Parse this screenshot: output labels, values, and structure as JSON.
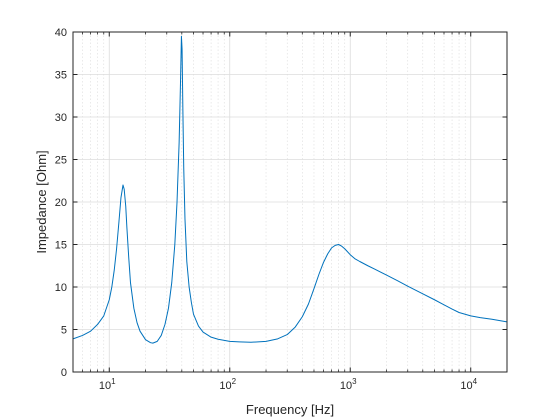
{
  "chart_data": {
    "type": "line",
    "title": "",
    "xlabel": "Frequency [Hz]",
    "ylabel": "Impedance [Ohm]",
    "xscale": "log",
    "xlim": [
      5,
      20000
    ],
    "ylim": [
      0,
      40
    ],
    "grid": true,
    "minor_grid": true,
    "line_color": "#0072bd",
    "grid_color": "#dcdcdc",
    "axis_color": "#262626",
    "x_ticks": [
      {
        "value": 10,
        "base": "10",
        "exp": "1"
      },
      {
        "value": 100,
        "base": "10",
        "exp": "2"
      },
      {
        "value": 1000,
        "base": "10",
        "exp": "3"
      },
      {
        "value": 10000,
        "base": "10",
        "exp": "4"
      }
    ],
    "y_ticks": [
      {
        "value": 0,
        "label": "0"
      },
      {
        "value": 5,
        "label": "5"
      },
      {
        "value": 10,
        "label": "10"
      },
      {
        "value": 15,
        "label": "15"
      },
      {
        "value": 20,
        "label": "20"
      },
      {
        "value": 25,
        "label": "25"
      },
      {
        "value": 30,
        "label": "30"
      },
      {
        "value": 35,
        "label": "35"
      },
      {
        "value": 40,
        "label": "40"
      }
    ],
    "series": [
      {
        "x": [
          5,
          6,
          7,
          8,
          9,
          10,
          10.5,
          11,
          11.5,
          12,
          12.5,
          13,
          13.3,
          13.7,
          14,
          14.5,
          15,
          16,
          17,
          18,
          20,
          22,
          23,
          25,
          27,
          29,
          31,
          33,
          35,
          36.5,
          38,
          39,
          39.7,
          40.2,
          40.8,
          41.5,
          42.5,
          44,
          46,
          48,
          50,
          55,
          60,
          70,
          80,
          100,
          120,
          150,
          200,
          250,
          300,
          350,
          400,
          450,
          500,
          550,
          600,
          650,
          700,
          750,
          800,
          850,
          900,
          1000,
          1100,
          1200,
          1400,
          1600,
          2000,
          2500,
          3000,
          4000,
          5000,
          6000,
          7000,
          8000,
          10000,
          12000,
          15000,
          20000
        ],
        "y": [
          3.9,
          4.3,
          4.8,
          5.6,
          6.6,
          8.5,
          10,
          12,
          14.5,
          17.5,
          20.5,
          22,
          21.5,
          19.5,
          17,
          13.5,
          10.5,
          7.5,
          5.8,
          4.8,
          3.8,
          3.45,
          3.4,
          3.6,
          4.3,
          5.6,
          7.5,
          10.5,
          15,
          20,
          27,
          34,
          39.5,
          38,
          31,
          24,
          18,
          13,
          10,
          8.2,
          6.8,
          5.4,
          4.7,
          4.1,
          3.85,
          3.6,
          3.55,
          3.5,
          3.6,
          3.9,
          4.4,
          5.3,
          6.5,
          8,
          9.8,
          11.5,
          12.9,
          13.9,
          14.6,
          14.9,
          15,
          14.8,
          14.5,
          13.8,
          13.3,
          13,
          12.5,
          12.1,
          11.4,
          10.7,
          10.1,
          9.2,
          8.5,
          7.9,
          7.4,
          7,
          6.6,
          6.4,
          6.2,
          5.9
        ]
      }
    ]
  }
}
